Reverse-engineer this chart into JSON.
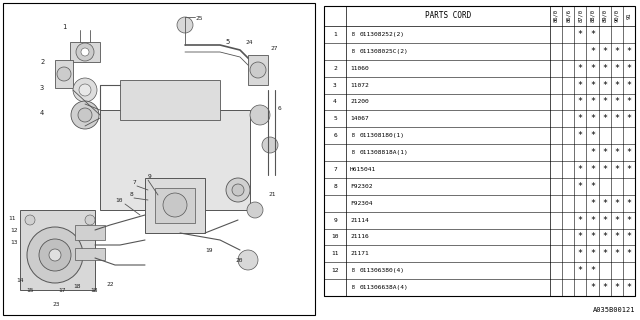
{
  "doc_number": "A035B00121",
  "table": {
    "header_col": "PARTS CORD",
    "year_cols": [
      "86/0",
      "86/6",
      "87/0",
      "88/0",
      "89/0",
      "90/0",
      "91"
    ],
    "rows": [
      {
        "ref": "1",
        "circle": true,
        "part": "B011308252(2)",
        "stars": [
          false,
          false,
          true,
          true,
          false,
          false,
          false
        ]
      },
      {
        "ref": "1",
        "circle": false,
        "part": "B011308025C(2)",
        "stars": [
          false,
          false,
          false,
          true,
          true,
          true,
          true
        ]
      },
      {
        "ref": "2",
        "circle": true,
        "part": "11060",
        "stars": [
          false,
          false,
          true,
          true,
          true,
          true,
          true
        ]
      },
      {
        "ref": "3",
        "circle": true,
        "part": "11072",
        "stars": [
          false,
          false,
          true,
          true,
          true,
          true,
          true
        ]
      },
      {
        "ref": "4",
        "circle": true,
        "part": "21200",
        "stars": [
          false,
          false,
          true,
          true,
          true,
          true,
          true
        ]
      },
      {
        "ref": "5",
        "circle": true,
        "part": "14067",
        "stars": [
          false,
          false,
          true,
          true,
          true,
          true,
          true
        ]
      },
      {
        "ref": "6",
        "circle": true,
        "part": "B011308180(1)",
        "stars": [
          false,
          false,
          true,
          true,
          false,
          false,
          false
        ]
      },
      {
        "ref": "6",
        "circle": false,
        "part": "B011308818A(1)",
        "stars": [
          false,
          false,
          false,
          true,
          true,
          true,
          true
        ]
      },
      {
        "ref": "7",
        "circle": true,
        "part": "H615041",
        "stars": [
          false,
          false,
          true,
          true,
          true,
          true,
          true
        ]
      },
      {
        "ref": "8",
        "circle": true,
        "part": "F92302",
        "stars": [
          false,
          false,
          true,
          true,
          false,
          false,
          false
        ]
      },
      {
        "ref": "8",
        "circle": false,
        "part": "F92304",
        "stars": [
          false,
          false,
          false,
          true,
          true,
          true,
          true
        ]
      },
      {
        "ref": "9",
        "circle": true,
        "part": "21114",
        "stars": [
          false,
          false,
          true,
          true,
          true,
          true,
          true
        ]
      },
      {
        "ref": "10",
        "circle": true,
        "part": "21116",
        "stars": [
          false,
          false,
          true,
          true,
          true,
          true,
          true
        ]
      },
      {
        "ref": "11",
        "circle": true,
        "part": "21171",
        "stars": [
          false,
          false,
          true,
          true,
          true,
          true,
          true
        ]
      },
      {
        "ref": "12",
        "circle": true,
        "part": "B011306380(4)",
        "stars": [
          false,
          false,
          true,
          true,
          false,
          false,
          false
        ]
      },
      {
        "ref": "12",
        "circle": false,
        "part": "B011306638A(4)",
        "stars": [
          false,
          false,
          false,
          true,
          true,
          true,
          true
        ]
      }
    ]
  }
}
